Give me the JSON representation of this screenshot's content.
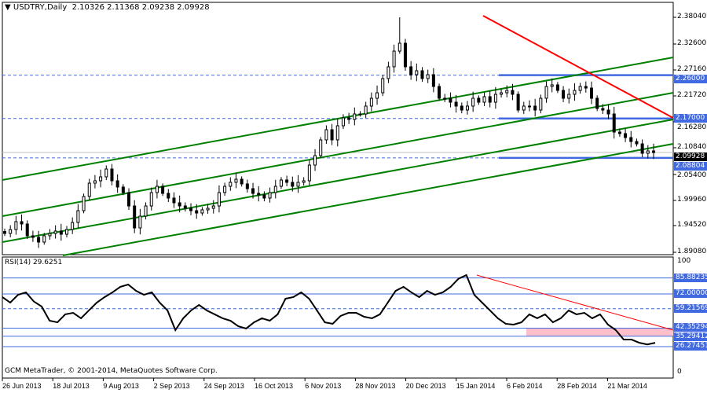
{
  "header": {
    "arrow_icon": "triangle-down-icon",
    "symbol": "USDTRY,Daily",
    "open": "2.10326",
    "high": "2.11368",
    "low": "2.09238",
    "close": "2.09928"
  },
  "price_axis": {
    "ticks": [
      "2.38040",
      "2.32600",
      "2.27160",
      "2.21720",
      "2.16280",
      "2.10840",
      "2.05400",
      "1.99960",
      "1.94520",
      "1.89080"
    ]
  },
  "levels": [
    {
      "label": "2.26000",
      "value": 2.26
    },
    {
      "label": "2.17000",
      "value": 2.17
    },
    {
      "label": "2.08804",
      "value": 2.08804
    }
  ],
  "current_price": {
    "label": "2.09928",
    "value": 2.09928
  },
  "rsi": {
    "title": "RSI(14) 29.6251",
    "axis_top": "100",
    "axis_bottom": "0",
    "levels": [
      {
        "label": "85.88235",
        "value": 85.88235
      },
      {
        "label": "72.00000",
        "value": 72.0
      },
      {
        "label": "59.21569",
        "value": 59.21569,
        "style": "dashed"
      },
      {
        "label": "42.35294",
        "value": 42.35294
      },
      {
        "label": "35.29412",
        "value": 35.29412
      },
      {
        "label": "26.27451",
        "value": 26.27451
      }
    ],
    "zone": [
      35.29412,
      42.35294
    ],
    "values": [
      69.3,
      64.5,
      71.3,
      73.4,
      65.5,
      61.1,
      48.8,
      47.4,
      54.3,
      55.6,
      50.9,
      57.7,
      64.5,
      69.3,
      73.4,
      78.2,
      80.2,
      74.7,
      71.3,
      73.4,
      64.5,
      57.7,
      40.6,
      50.9,
      57.7,
      62.5,
      57.7,
      54.3,
      50.9,
      48.8,
      44.0,
      42.0,
      47.4,
      50.9,
      48.8,
      54.3,
      67.9,
      69.3,
      73.4,
      67.9,
      57.7,
      47.4,
      46.1,
      52.9,
      55.6,
      55.6,
      52.2,
      50.9,
      54.3,
      64.5,
      74.7,
      78.2,
      73.4,
      69.3,
      74.7,
      71.3,
      73.4,
      78.2,
      85.3,
      88.4,
      71.3,
      64.5,
      57.7,
      50.9,
      46.1,
      45.4,
      47.4,
      54.3,
      50.9,
      54.3,
      47.4,
      50.9,
      57.7,
      54.3,
      55.6,
      50.9,
      54.3,
      45.4,
      40.6,
      32.4,
      32.4,
      29.6,
      28.2,
      29.6
    ]
  },
  "time_axis": [
    "26 Jun 2013",
    "18 Jul 2013",
    "9 Aug 2013",
    "2 Sep 2013",
    "24 Sep 2013",
    "16 Oct 2013",
    "6 Nov 2013",
    "28 Nov 2013",
    "20 Dec 2013",
    "15 Jan 2014",
    "6 Feb 2014",
    "28 Feb 2014",
    "21 Mar 2014"
  ],
  "closes": [
    1.9311,
    1.9392,
    1.9556,
    1.9507,
    1.9262,
    1.9229,
    1.9131,
    1.9262,
    1.9311,
    1.936,
    1.9294,
    1.9392,
    1.9539,
    1.9784,
    2.0079,
    2.0356,
    2.0405,
    2.0487,
    2.065,
    2.0405,
    2.0275,
    2.016,
    1.9882,
    1.9425,
    1.967,
    1.9882,
    2.016,
    2.0291,
    2.0144,
    2.0046,
    1.9948,
    1.9882,
    1.9833,
    1.9784,
    1.9735,
    1.9801,
    1.9833,
    1.9882,
    2.016,
    2.0291,
    2.0373,
    2.0438,
    2.034,
    2.0242,
    2.0144,
    2.0111,
    2.0046,
    2.016,
    2.0291,
    2.0422,
    2.0373,
    2.0291,
    2.0373,
    2.0405,
    2.0732,
    2.0928,
    2.1255,
    2.1467,
    2.1255,
    2.1549,
    2.1713,
    2.168,
    2.1794,
    2.1794,
    2.1958,
    2.2121,
    2.2235,
    2.253,
    2.2775,
    2.3101,
    2.3265,
    2.2775,
    2.2611,
    2.2693,
    2.253,
    2.2611,
    2.2366,
    2.2121,
    2.2121,
    2.2039,
    2.1958,
    2.1876,
    2.1958,
    2.2121,
    2.2039,
    2.2154,
    2.2039,
    2.2203,
    2.2235,
    2.2284,
    2.2203,
    2.1876,
    2.1958,
    2.1958,
    2.1876,
    2.2121,
    2.2366,
    2.2399,
    2.2284,
    2.2121,
    2.2203,
    2.2284,
    2.2366,
    2.2333,
    2.2121,
    2.1908,
    2.1876,
    2.1794,
    2.1418,
    2.1386,
    2.1304,
    2.1222,
    2.1173,
    2.0977,
    2.1026,
    2.0993
  ],
  "peak_high": 2.3804,
  "colors": {
    "channel": "#008000",
    "trendline": "#ff0000",
    "level": "#4169e1",
    "zone": "#ffc0cb",
    "candle": "#000000",
    "background": "#ffffff"
  },
  "footer": {
    "copyright": "GCM MetaTrader, © 2001-2014, MetaQuotes Software Corp."
  }
}
